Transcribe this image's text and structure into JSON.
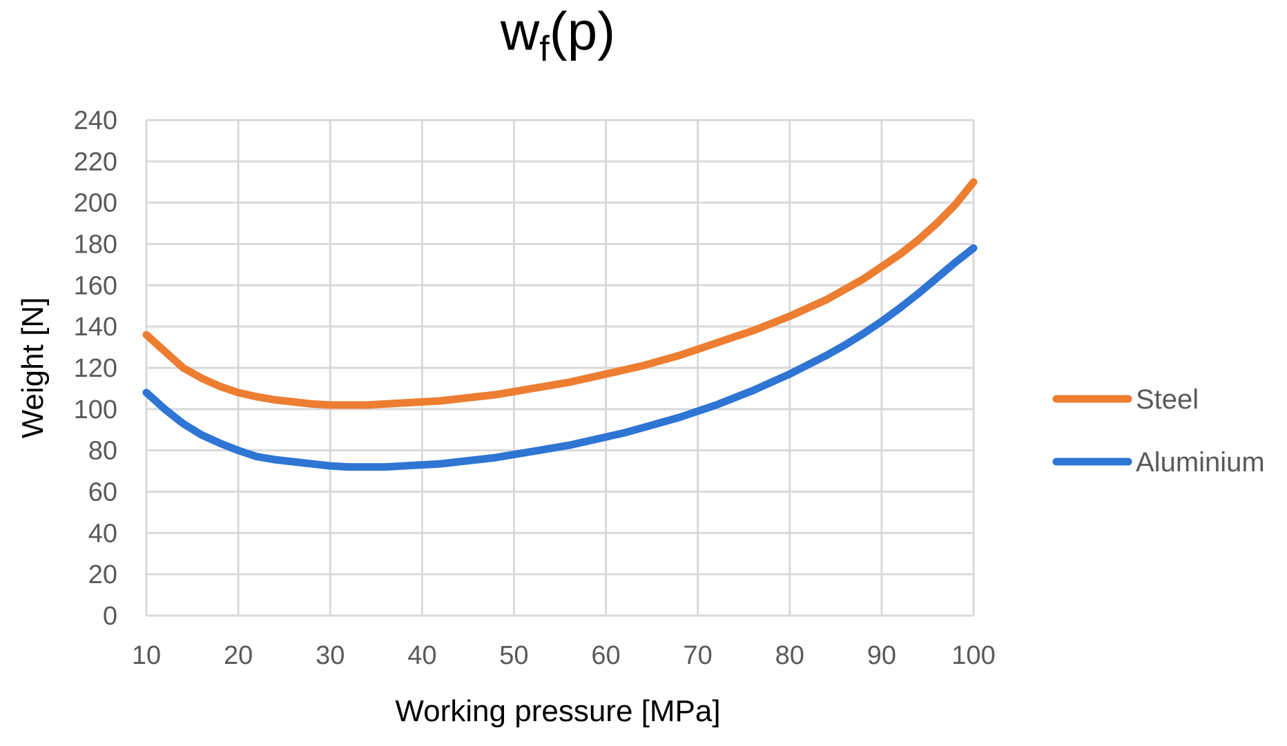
{
  "chart_data": {
    "type": "line",
    "title": {
      "main": "w",
      "subscript": "f",
      "suffix": "(p)"
    },
    "xlabel": "Working pressure  [MPa]",
    "ylabel": "Weight [N]",
    "xlim": [
      10,
      100
    ],
    "ylim": [
      0,
      240
    ],
    "xticks": [
      10,
      20,
      30,
      40,
      50,
      60,
      70,
      80,
      90,
      100
    ],
    "yticks": [
      0,
      20,
      40,
      60,
      80,
      100,
      120,
      140,
      160,
      180,
      200,
      220,
      240
    ],
    "grid": true,
    "legend_position": "right",
    "series": [
      {
        "name": "Steel",
        "color": "#ed7d31",
        "x": [
          10,
          12,
          14,
          16,
          18,
          20,
          22,
          24,
          26,
          28,
          30,
          32,
          34,
          36,
          38,
          40,
          42,
          44,
          46,
          48,
          50,
          52,
          54,
          56,
          58,
          60,
          62,
          64,
          66,
          68,
          70,
          72,
          74,
          76,
          78,
          80,
          82,
          84,
          86,
          88,
          90,
          92,
          94,
          96,
          98,
          100
        ],
        "values": [
          136,
          128,
          120,
          115,
          111,
          108,
          106,
          104.5,
          103.5,
          102.5,
          102,
          102,
          102,
          102.5,
          103,
          103.5,
          104,
          105,
          106,
          107,
          108.5,
          110,
          111.5,
          113,
          115,
          117,
          119,
          121,
          123.5,
          126,
          129,
          132,
          135,
          138,
          141.5,
          145,
          149,
          153,
          158,
          163,
          169,
          175,
          182,
          190,
          199,
          210
        ]
      },
      {
        "name": "Aluminium",
        "color": "#2e75d4",
        "x": [
          10,
          12,
          14,
          16,
          18,
          20,
          22,
          24,
          26,
          28,
          30,
          32,
          34,
          36,
          38,
          40,
          42,
          44,
          46,
          48,
          50,
          52,
          54,
          56,
          58,
          60,
          62,
          64,
          66,
          68,
          70,
          72,
          74,
          76,
          78,
          80,
          82,
          84,
          86,
          88,
          90,
          92,
          94,
          96,
          98,
          100
        ],
        "values": [
          108,
          100,
          93,
          87.5,
          83.5,
          80,
          77,
          75.5,
          74.5,
          73.5,
          72.5,
          72,
          72,
          72,
          72.5,
          73,
          73.5,
          74.5,
          75.5,
          76.5,
          78,
          79.5,
          81,
          82.5,
          84.5,
          86.5,
          88.5,
          91,
          93.5,
          96,
          99,
          102,
          105.5,
          109,
          113,
          117,
          121.5,
          126,
          131,
          136.5,
          142.5,
          149,
          156,
          163.5,
          171,
          178
        ]
      }
    ]
  }
}
